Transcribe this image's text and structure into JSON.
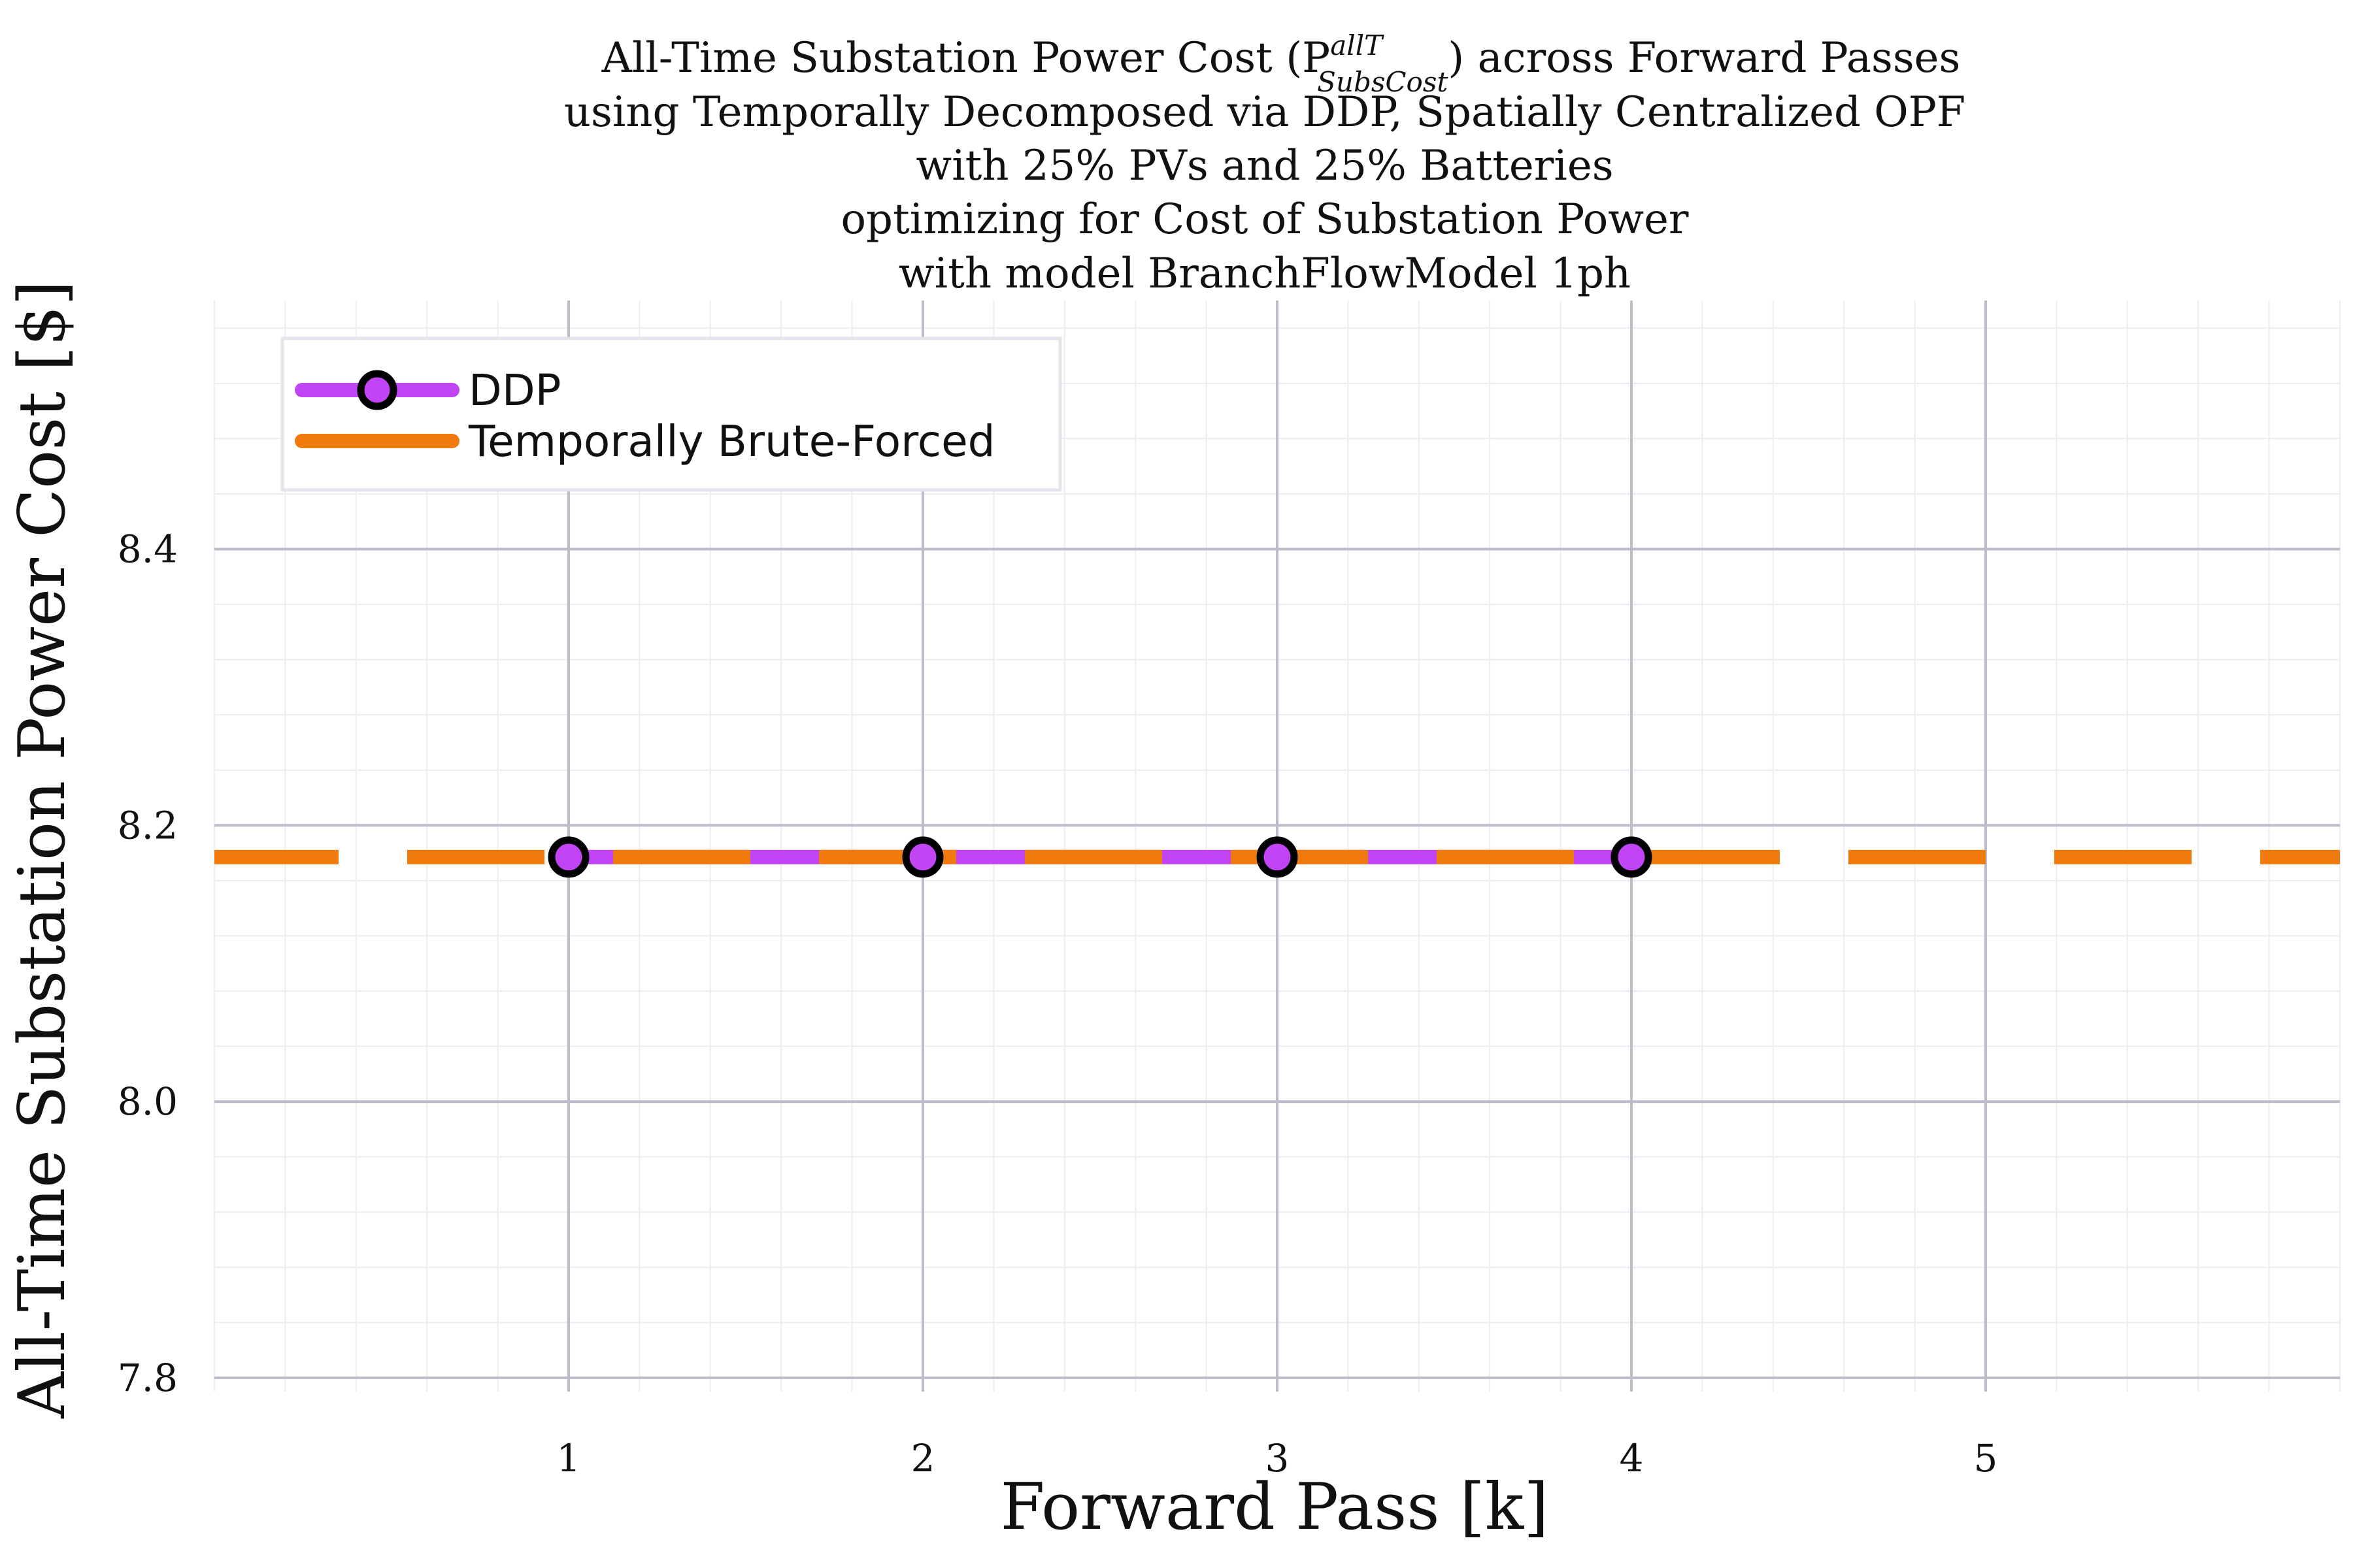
{
  "chart_data": {
    "type": "line",
    "title_lines": [
      "All-Time Substation Power Cost (P",
      "using Temporally Decomposed via DDP, Spatially Centralized OPF",
      "with 25% PVs and 25% Batteries",
      "optimizing for Cost of Substation Power",
      "with model BranchFlowModel 1ph"
    ],
    "title_symbol": {
      "superscript": "allT",
      "subscript": "SubsCost",
      "suffix": ") across Forward Passes"
    },
    "xlabel": "Forward Pass [k]",
    "ylabel": "All-Time Substation Power Cost [$]",
    "xlim": [
      0.0,
      6.0
    ],
    "ylim": [
      7.79,
      8.58
    ],
    "xticks": [
      1,
      2,
      3,
      4,
      5
    ],
    "yticks": [
      7.8,
      8.0,
      8.2,
      8.4
    ],
    "ytick_labels": [
      "7.8",
      "8.0",
      "8.2",
      "8.4"
    ],
    "grid": true,
    "legend_position": "top-left",
    "series": [
      {
        "name": "DDP",
        "x": [
          1,
          2,
          3,
          4
        ],
        "y": [
          8.177,
          8.177,
          8.177,
          8.177
        ],
        "color": "#c144f5",
        "marker": "circle",
        "linestyle": "solid"
      },
      {
        "name": "Temporally Brute-Forced",
        "y": 8.177,
        "color": "#f07a0c",
        "linestyle": "dashed"
      }
    ]
  }
}
